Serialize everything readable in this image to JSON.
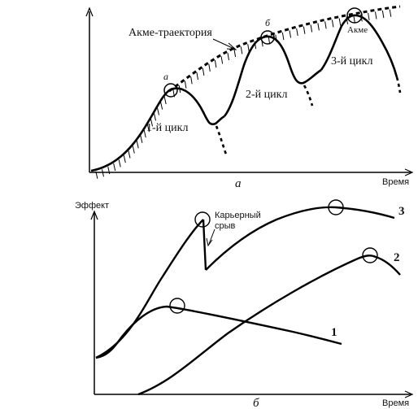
{
  "top_diagram": {
    "acme_trajectory_label": "Акме-траектория",
    "cycle_1_label": "1-й цикл",
    "cycle_2_label": "2-й цикл",
    "cycle_3_label": "3-й цикл",
    "peak_a_label": "а",
    "peak_b_label": "б",
    "peak_acme_label": "Акме",
    "x_axis_label": "Время",
    "panel_label": "а"
  },
  "bottom_diagram": {
    "y_axis_label": "Эффект",
    "x_axis_label": "Время",
    "career_break_label_line1": "Карьерный",
    "career_break_label_line2": "срыв",
    "curve_1_label": "1",
    "curve_2_label": "2",
    "curve_3_label": "3",
    "panel_label": "б"
  }
}
